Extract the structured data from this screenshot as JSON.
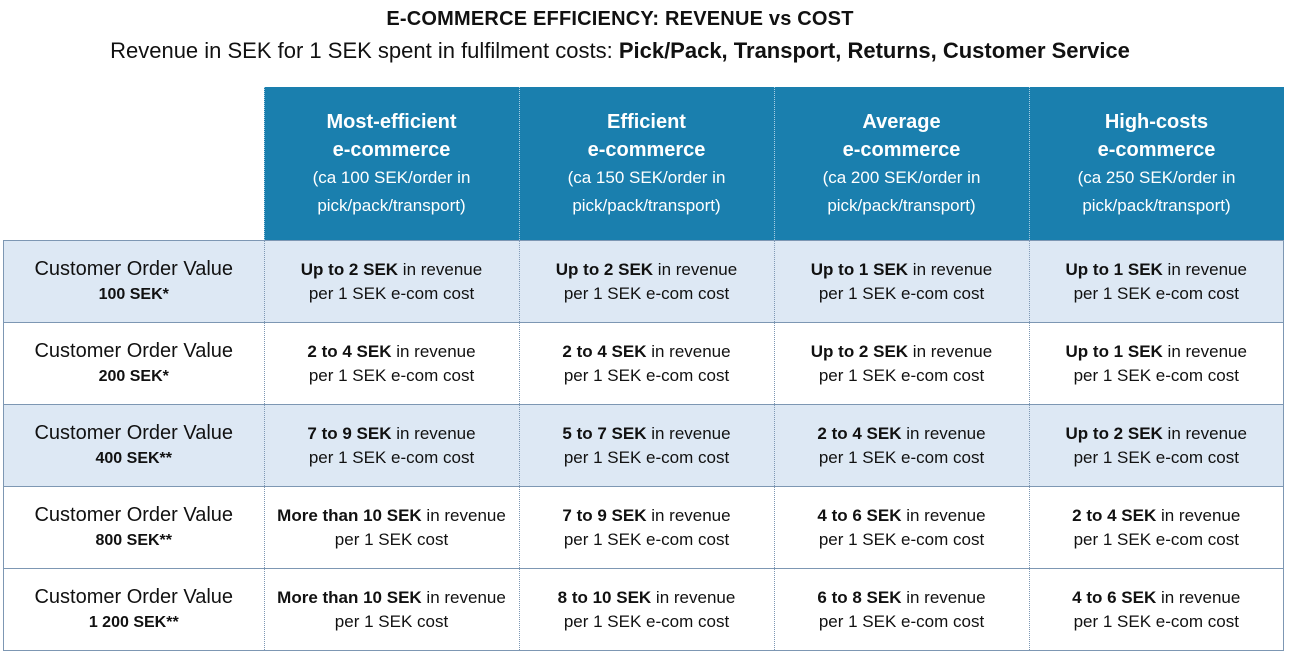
{
  "title": "E-COMMERCE EFFICIENCY: REVENUE vs COST",
  "subtitle": {
    "plain": "Revenue in SEK for 1 SEK spent in fulfilment costs:",
    "bold": "Pick/Pack, Transport, Returns, Customer Service"
  },
  "columns": [
    {
      "line1": "Most-efficient",
      "line2": "e-commerce",
      "line3": "(ca 100 SEK/order in",
      "line4": "pick/pack/transport)"
    },
    {
      "line1": "Efficient",
      "line2": "e-commerce",
      "line3": "(ca 150 SEK/order in",
      "line4": "pick/pack/transport)"
    },
    {
      "line1": "Average",
      "line2": "e-commerce",
      "line3": "(ca 200 SEK/order in",
      "line4": "pick/pack/transport)"
    },
    {
      "line1": "High-costs",
      "line2": "e-commerce",
      "line3": "(ca 250 SEK/order in",
      "line4": "pick/pack/transport)"
    }
  ],
  "rows": [
    {
      "label": "Customer Order Value",
      "value": "100 SEK*",
      "cells": [
        {
          "bold": "Up to 2 SEK",
          "rest": " in revenue",
          "line2": "per 1 SEK e-com cost"
        },
        {
          "bold": "Up to 2 SEK",
          "rest": " in revenue",
          "line2": "per 1 SEK e-com cost"
        },
        {
          "bold": "Up to 1 SEK",
          "rest": " in revenue",
          "line2": "per 1 SEK e-com cost"
        },
        {
          "bold": "Up to 1 SEK",
          "rest": " in revenue",
          "line2": "per 1 SEK e-com cost"
        }
      ]
    },
    {
      "label": "Customer Order Value",
      "value": "200 SEK*",
      "cells": [
        {
          "bold": "2 to 4 SEK",
          "rest": " in revenue",
          "line2": "per 1 SEK e-com cost"
        },
        {
          "bold": "2 to 4 SEK",
          "rest": " in revenue",
          "line2": "per 1 SEK e-com cost"
        },
        {
          "bold": "Up to 2 SEK",
          "rest": " in revenue",
          "line2": "per 1 SEK e-com cost"
        },
        {
          "bold": "Up to 1 SEK",
          "rest": " in revenue",
          "line2": "per 1 SEK e-com cost"
        }
      ]
    },
    {
      "label": "Customer Order Value",
      "value": "400 SEK**",
      "cells": [
        {
          "bold": "7 to 9 SEK",
          "rest": " in revenue",
          "line2": "per 1 SEK e-com cost"
        },
        {
          "bold": "5 to 7 SEK",
          "rest": " in revenue",
          "line2": "per 1 SEK e-com cost"
        },
        {
          "bold": "2 to 4 SEK",
          "rest": " in revenue",
          "line2": "per 1 SEK e-com cost"
        },
        {
          "bold": "Up to 2 SEK",
          "rest": " in revenue",
          "line2": "per 1 SEK e-com cost"
        }
      ]
    },
    {
      "label": "Customer Order Value",
      "value": "800 SEK**",
      "cells": [
        {
          "bold": "More than 10 SEK",
          "rest": " in revenue",
          "line2": "per 1 SEK cost"
        },
        {
          "bold": "7 to 9 SEK",
          "rest": " in revenue",
          "line2": "per 1 SEK e-com cost"
        },
        {
          "bold": "4 to 6 SEK",
          "rest": " in revenue",
          "line2": "per 1 SEK e-com cost"
        },
        {
          "bold": "2 to 4 SEK",
          "rest": " in revenue",
          "line2": "per 1 SEK e-com cost"
        }
      ]
    },
    {
      "label": "Customer Order Value",
      "value": "1 200 SEK**",
      "cells": [
        {
          "bold": "More than 10 SEK",
          "rest": " in revenue",
          "line2": "per 1 SEK cost"
        },
        {
          "bold": "8 to 10 SEK",
          "rest": " in revenue",
          "line2": "per 1 SEK e-com cost"
        },
        {
          "bold": "6 to 8 SEK",
          "rest": " in revenue",
          "line2": "per 1 SEK e-com cost"
        },
        {
          "bold": "4 to 6 SEK",
          "rest": " in revenue",
          "line2": "per 1 SEK e-com cost"
        }
      ]
    }
  ],
  "colors": {
    "header_bg": "#1a7fae",
    "shade_bg": "#dde8f4",
    "border": "#7d97b3"
  }
}
